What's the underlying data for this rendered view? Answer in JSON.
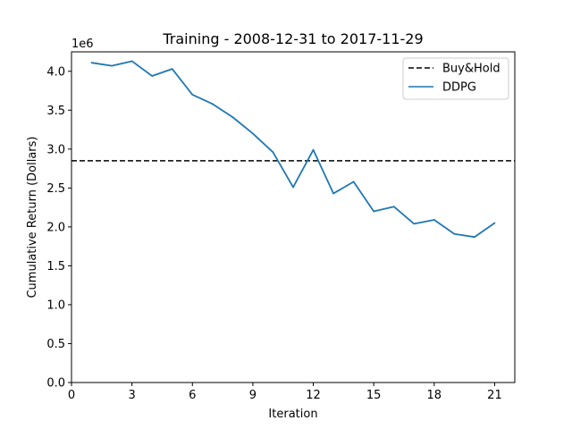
{
  "chart_data": {
    "type": "line",
    "title": "Training - 2008-12-31 to 2017-11-29",
    "xlabel": "Iteration",
    "ylabel": "Cumulative Return (Dollars)",
    "y_offset_label": "1e6",
    "xlim": [
      0,
      22
    ],
    "ylim": [
      0,
      4.25
    ],
    "xticks": [
      0,
      3,
      6,
      9,
      12,
      15,
      18,
      21
    ],
    "yticks": [
      0.0,
      0.5,
      1.0,
      1.5,
      2.0,
      2.5,
      3.0,
      3.5,
      4.0
    ],
    "ytick_labels": [
      "0.0",
      "0.5",
      "1.0",
      "1.5",
      "2.0",
      "2.5",
      "3.0",
      "3.5",
      "4.0"
    ],
    "grid": false,
    "legend_position": "top-right",
    "series": [
      {
        "name": "Buy&Hold",
        "style": "dashed",
        "color": "#000000",
        "y_constant": 2.85
      },
      {
        "name": "DDPG",
        "style": "solid",
        "color": "#1f77b4",
        "x": [
          1,
          2,
          3,
          4,
          5,
          6,
          7,
          8,
          9,
          10,
          11,
          12,
          13,
          14,
          15,
          16,
          17,
          18,
          19,
          20,
          21
        ],
        "y": [
          4.11,
          4.07,
          4.13,
          3.94,
          4.03,
          3.7,
          3.58,
          3.41,
          3.2,
          2.96,
          2.51,
          2.99,
          2.43,
          2.58,
          2.2,
          2.26,
          2.04,
          2.09,
          1.91,
          1.87,
          2.05
        ]
      }
    ]
  }
}
